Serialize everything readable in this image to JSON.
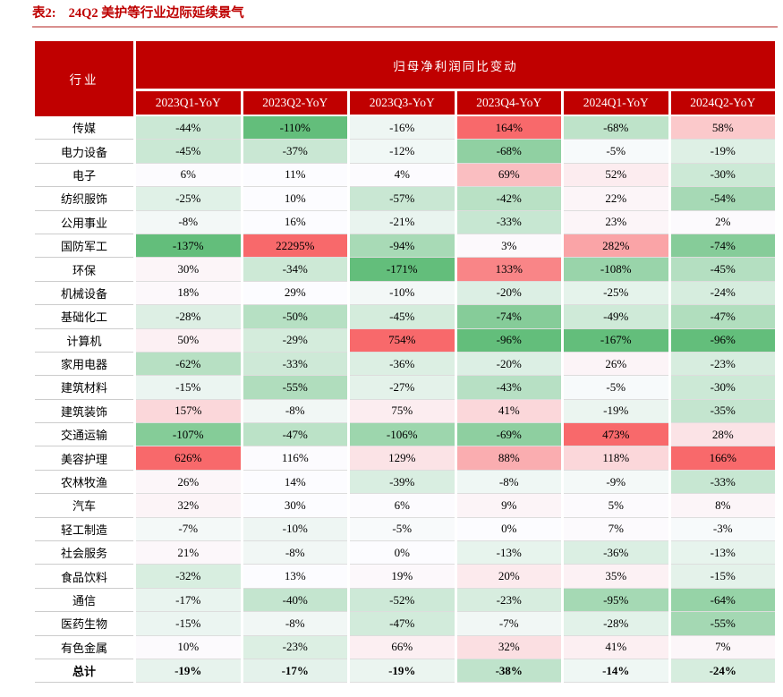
{
  "title": {
    "prefix": "表2:",
    "text": "24Q2 美护等行业边际延续景气"
  },
  "table": {
    "industry_header": "行业",
    "group_header": "归母净利润同比变动",
    "columns": [
      "2023Q1-YoY",
      "2023Q2-YoY",
      "2023Q3-YoY",
      "2023Q4-YoY",
      "2024Q1-YoY",
      "2024Q2-YoY"
    ],
    "value_suffix": "%",
    "rows": [
      {
        "industry": "传媒",
        "values": [
          -44,
          -110,
          -16,
          164,
          -68,
          58
        ]
      },
      {
        "industry": "电力设备",
        "values": [
          -45,
          -37,
          -12,
          -68,
          -5,
          -19
        ]
      },
      {
        "industry": "电子",
        "values": [
          6,
          11,
          4,
          69,
          52,
          -30
        ]
      },
      {
        "industry": "纺织服饰",
        "values": [
          -25,
          10,
          -57,
          -42,
          22,
          -54
        ]
      },
      {
        "industry": "公用事业",
        "values": [
          -8,
          16,
          -21,
          -33,
          23,
          2
        ]
      },
      {
        "industry": "国防军工",
        "values": [
          -137,
          22295,
          -94,
          3,
          282,
          -74
        ]
      },
      {
        "industry": "环保",
        "values": [
          30,
          -34,
          -171,
          133,
          -108,
          -45
        ]
      },
      {
        "industry": "机械设备",
        "values": [
          18,
          29,
          -10,
          -20,
          -25,
          -24
        ]
      },
      {
        "industry": "基础化工",
        "values": [
          -28,
          -50,
          -45,
          -74,
          -49,
          -47
        ]
      },
      {
        "industry": "计算机",
        "values": [
          50,
          -29,
          754,
          -96,
          -167,
          -96
        ]
      },
      {
        "industry": "家用电器",
        "values": [
          -62,
          -33,
          -36,
          -20,
          26,
          -23
        ]
      },
      {
        "industry": "建筑材料",
        "values": [
          -15,
          -55,
          -27,
          -43,
          -5,
          -30
        ]
      },
      {
        "industry": "建筑装饰",
        "values": [
          157,
          -8,
          75,
          41,
          -19,
          -35
        ]
      },
      {
        "industry": "交通运输",
        "values": [
          -107,
          -47,
          -106,
          -69,
          473,
          28
        ]
      },
      {
        "industry": "美容护理",
        "values": [
          626,
          116,
          129,
          88,
          118,
          166
        ]
      },
      {
        "industry": "农林牧渔",
        "values": [
          26,
          14,
          -39,
          -8,
          -9,
          -33
        ]
      },
      {
        "industry": "汽车",
        "values": [
          32,
          30,
          6,
          9,
          5,
          8
        ]
      },
      {
        "industry": "轻工制造",
        "values": [
          -7,
          -10,
          -5,
          0,
          7,
          -3
        ]
      },
      {
        "industry": "社会服务",
        "values": [
          21,
          -8,
          0,
          -13,
          -36,
          -13
        ]
      },
      {
        "industry": "食品饮料",
        "values": [
          -32,
          13,
          19,
          20,
          35,
          -15
        ]
      },
      {
        "industry": "通信",
        "values": [
          -17,
          -40,
          -52,
          -23,
          -95,
          -64
        ]
      },
      {
        "industry": "医药生物",
        "values": [
          -15,
          -8,
          -47,
          -7,
          -28,
          -55
        ]
      },
      {
        "industry": "有色金属",
        "values": [
          10,
          -23,
          66,
          32,
          41,
          7
        ]
      }
    ],
    "total_row": {
      "industry": "总计",
      "values": [
        -19,
        -17,
        -19,
        -38,
        -14,
        -24
      ]
    }
  },
  "colors": {
    "header_bg": "#C00000",
    "title_text": "#BE0000",
    "title_rule": "#D9908F",
    "scale_positive_max": "#F8696B",
    "scale_zero": "#FCFCFF",
    "scale_negative_min": "#63BE7B",
    "grid_line": "#DDDDDD",
    "color_scale_note": "per-column: max positive -> full red, 0 -> white, min negative -> full green"
  }
}
